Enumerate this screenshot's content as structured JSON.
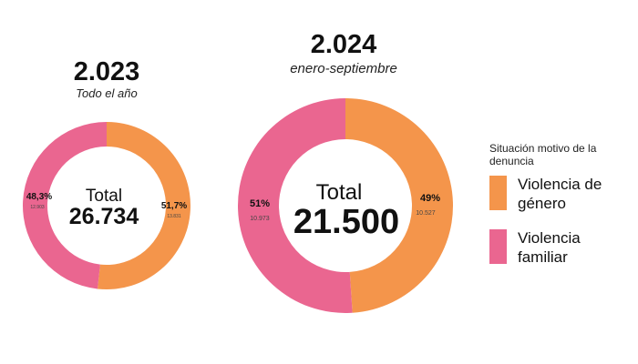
{
  "colors": {
    "genero": "#f4954b",
    "familiar": "#ea6690"
  },
  "legend": {
    "title": "Situación motivo de la denuncia",
    "items": [
      {
        "label": "Violencia de género",
        "color": "#f4954b"
      },
      {
        "label": "Violencia familiar",
        "color": "#ea6690"
      }
    ]
  },
  "chart_data": [
    {
      "type": "pie",
      "title": "2.023",
      "subtitle": "Todo el año",
      "center_label": "Total",
      "center_value": "26.734",
      "categories": [
        "Violencia de género",
        "Violencia familiar"
      ],
      "values": [
        13.831,
        12.903
      ],
      "percent_labels": [
        "51,7%",
        "48,3%"
      ],
      "count_labels": [
        "13.831",
        "12.903"
      ]
    },
    {
      "type": "pie",
      "title": "2.024",
      "subtitle": "enero-septiembre",
      "center_label": "Total",
      "center_value": "21.500",
      "categories": [
        "Violencia de género",
        "Violencia familiar"
      ],
      "values": [
        10.527,
        10.973
      ],
      "percent_labels": [
        "49%",
        "51%"
      ],
      "count_labels": [
        "10.527",
        "10.973"
      ]
    }
  ]
}
